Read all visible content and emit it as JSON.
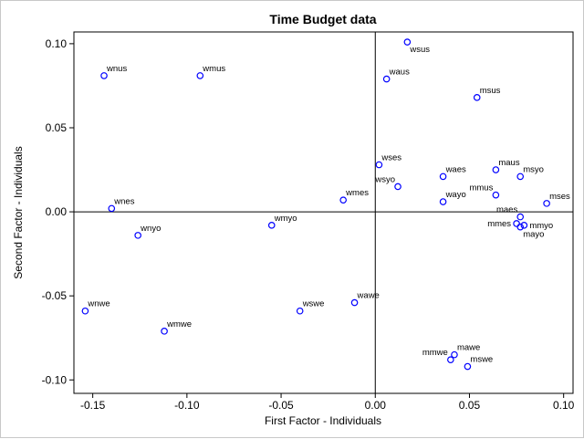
{
  "chart_data": {
    "type": "scatter",
    "title": "Time Budget data",
    "xlabel": "First Factor - Individuals",
    "ylabel": "Second Factor - Individuals",
    "xlim": [
      -0.16,
      0.105
    ],
    "ylim": [
      -0.108,
      0.107
    ],
    "xticks": [
      -0.15,
      -0.1,
      -0.05,
      0.0,
      0.05,
      0.1
    ],
    "xtick_labels": [
      "-0.15",
      "-0.10",
      "-0.05",
      "0.00",
      "0.05",
      "0.10"
    ],
    "yticks": [
      -0.1,
      -0.05,
      0.0,
      0.05,
      0.1
    ],
    "ytick_labels": [
      "-0.10",
      "-0.05",
      "0.00",
      "0.05",
      "0.10"
    ],
    "reference_lines": {
      "x": 0.0,
      "y": 0.0
    },
    "marker": {
      "shape": "circle",
      "color": "#0000ff",
      "fill": "none"
    },
    "points": [
      {
        "label": "wsus",
        "x": 0.017,
        "y": 0.101,
        "label_pos": "below-right"
      },
      {
        "label": "wnus",
        "x": -0.144,
        "y": 0.081,
        "label_pos": "above-right"
      },
      {
        "label": "wmus",
        "x": -0.093,
        "y": 0.081,
        "label_pos": "above-right"
      },
      {
        "label": "waus",
        "x": 0.006,
        "y": 0.079,
        "label_pos": "above-right"
      },
      {
        "label": "msus",
        "x": 0.054,
        "y": 0.068,
        "label_pos": "above-right"
      },
      {
        "label": "wses",
        "x": 0.002,
        "y": 0.028,
        "label_pos": "above-right"
      },
      {
        "label": "maus",
        "x": 0.064,
        "y": 0.025,
        "label_pos": "above-right"
      },
      {
        "label": "msyo",
        "x": 0.077,
        "y": 0.021,
        "label_pos": "above-right"
      },
      {
        "label": "waes",
        "x": 0.036,
        "y": 0.021,
        "label_pos": "above-right"
      },
      {
        "label": "wsyo",
        "x": 0.012,
        "y": 0.015,
        "label_pos": "above-left"
      },
      {
        "label": "mmus",
        "x": 0.064,
        "y": 0.01,
        "label_pos": "above-left"
      },
      {
        "label": "mses",
        "x": 0.091,
        "y": 0.005,
        "label_pos": "above-right"
      },
      {
        "label": "wayo",
        "x": 0.036,
        "y": 0.006,
        "label_pos": "above-right"
      },
      {
        "label": "wmes",
        "x": -0.017,
        "y": 0.007,
        "label_pos": "above-right"
      },
      {
        "label": "wnes",
        "x": -0.14,
        "y": 0.002,
        "label_pos": "above-right"
      },
      {
        "label": "maes",
        "x": 0.077,
        "y": -0.003,
        "label_pos": "above-left"
      },
      {
        "label": "mmes",
        "x": 0.075,
        "y": -0.007,
        "label_pos": "left"
      },
      {
        "label": "mmyo",
        "x": 0.079,
        "y": -0.008,
        "label_pos": "right"
      },
      {
        "label": "mayo",
        "x": 0.077,
        "y": -0.009,
        "label_pos": "below-right"
      },
      {
        "label": "wmyo",
        "x": -0.055,
        "y": -0.008,
        "label_pos": "above-right"
      },
      {
        "label": "wnyo",
        "x": -0.126,
        "y": -0.014,
        "label_pos": "above-right"
      },
      {
        "label": "wawe",
        "x": -0.011,
        "y": -0.054,
        "label_pos": "above-right"
      },
      {
        "label": "wswe",
        "x": -0.04,
        "y": -0.059,
        "label_pos": "above-right"
      },
      {
        "label": "wnwe",
        "x": -0.154,
        "y": -0.059,
        "label_pos": "above-right"
      },
      {
        "label": "wmwe",
        "x": -0.112,
        "y": -0.071,
        "label_pos": "above-right"
      },
      {
        "label": "mawe",
        "x": 0.042,
        "y": -0.085,
        "label_pos": "above-right"
      },
      {
        "label": "mmwe",
        "x": 0.04,
        "y": -0.088,
        "label_pos": "above-left"
      },
      {
        "label": "mswe",
        "x": 0.049,
        "y": -0.092,
        "label_pos": "above-right"
      }
    ]
  }
}
